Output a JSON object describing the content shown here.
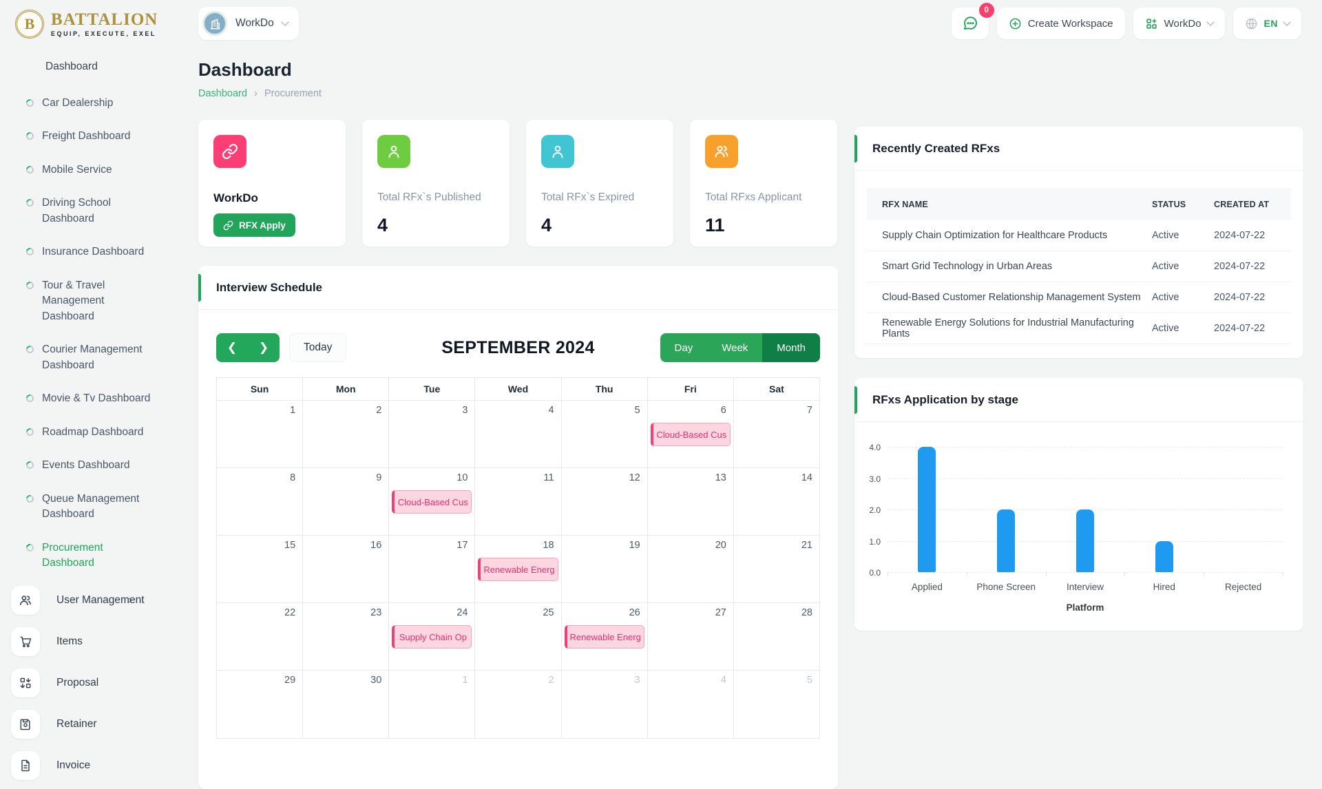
{
  "brand": {
    "name": "BATTALION",
    "tagline": "EQUIP, EXECUTE, EXEL",
    "monogram": "B"
  },
  "topbar": {
    "workspace_switcher_label": "WorkDo",
    "chat_badge_count": "0",
    "create_workspace_label": "Create Workspace",
    "workspace_menu_label": "WorkDo",
    "language_label": "EN"
  },
  "sidebar": {
    "group_label": "Dashboard",
    "dashboard_items": [
      {
        "label": "Car Dealership"
      },
      {
        "label": "Freight Dashboard"
      },
      {
        "label": "Mobile Service"
      },
      {
        "label": "Driving School Dashboard"
      },
      {
        "label": "Insurance Dashboard"
      },
      {
        "label": "Tour & Travel Management Dashboard"
      },
      {
        "label": "Courier Management Dashboard"
      },
      {
        "label": "Movie & Tv Dashboard"
      },
      {
        "label": "Roadmap Dashboard"
      },
      {
        "label": "Events Dashboard"
      },
      {
        "label": "Queue Management Dashboard"
      },
      {
        "label": "Procurement Dashboard",
        "active": true
      }
    ],
    "module_items": [
      {
        "label": "User Management",
        "icon": "users",
        "has_submenu": true
      },
      {
        "label": "Items",
        "icon": "cart"
      },
      {
        "label": "Proposal",
        "icon": "proposal"
      },
      {
        "label": "Retainer",
        "icon": "retainer"
      },
      {
        "label": "Invoice",
        "icon": "invoice"
      }
    ]
  },
  "page": {
    "title": "Dashboard",
    "breadcrumb_root": "Dashboard",
    "breadcrumb_separator": "›",
    "breadcrumb_current": "Procurement"
  },
  "stats": [
    {
      "icon": "link",
      "icon_bg": "#FB3E74",
      "title": "WorkDo",
      "title_style": "dark",
      "button_label": "RFX Apply"
    },
    {
      "icon": "user",
      "icon_bg": "#6DCC3F",
      "title": "Total RFx`s Published",
      "value": "4"
    },
    {
      "icon": "user",
      "icon_bg": "#40C5D3",
      "title": "Total RFx`s Expired",
      "value": "4"
    },
    {
      "icon": "users",
      "icon_bg": "#F7A12C",
      "title": "Total RFxs Applicant",
      "value": "11"
    }
  ],
  "calendar": {
    "card_title": "Interview Schedule",
    "today_label": "Today",
    "month_title": "SEPTEMBER 2024",
    "views": [
      "Day",
      "Week",
      "Month"
    ],
    "active_view": "Month",
    "day_headers": [
      "Sun",
      "Mon",
      "Tue",
      "Wed",
      "Thu",
      "Fri",
      "Sat"
    ],
    "weeks": [
      [
        {
          "d": "1"
        },
        {
          "d": "2"
        },
        {
          "d": "3"
        },
        {
          "d": "4"
        },
        {
          "d": "5"
        },
        {
          "d": "6",
          "event": "Cloud-Based Cus"
        },
        {
          "d": "7"
        }
      ],
      [
        {
          "d": "8"
        },
        {
          "d": "9"
        },
        {
          "d": "10",
          "event": "Cloud-Based Cus"
        },
        {
          "d": "11"
        },
        {
          "d": "12"
        },
        {
          "d": "13"
        },
        {
          "d": "14"
        }
      ],
      [
        {
          "d": "15"
        },
        {
          "d": "16"
        },
        {
          "d": "17"
        },
        {
          "d": "18",
          "event": "Renewable Energ"
        },
        {
          "d": "19"
        },
        {
          "d": "20"
        },
        {
          "d": "21"
        }
      ],
      [
        {
          "d": "22"
        },
        {
          "d": "23"
        },
        {
          "d": "24",
          "event": "Supply Chain Op"
        },
        {
          "d": "25"
        },
        {
          "d": "26",
          "event": "Renewable Energ"
        },
        {
          "d": "27"
        },
        {
          "d": "28"
        }
      ],
      [
        {
          "d": "29"
        },
        {
          "d": "30"
        },
        {
          "d": "1",
          "muted": true
        },
        {
          "d": "2",
          "muted": true
        },
        {
          "d": "3",
          "muted": true
        },
        {
          "d": "4",
          "muted": true
        },
        {
          "d": "5",
          "muted": true
        }
      ]
    ]
  },
  "rfx_table": {
    "card_title": "Recently Created RFxs",
    "columns": [
      "RFX NAME",
      "STATUS",
      "CREATED AT"
    ],
    "rows": [
      [
        "Supply Chain Optimization for Healthcare Products",
        "Active",
        "2024-07-22"
      ],
      [
        "Smart Grid Technology in Urban Areas",
        "Active",
        "2024-07-22"
      ],
      [
        "Cloud-Based Customer Relationship Management System",
        "Active",
        "2024-07-22"
      ],
      [
        "Renewable Energy Solutions for Industrial Manufacturing Plants",
        "Active",
        "2024-07-22"
      ]
    ]
  },
  "chart_data": {
    "type": "bar",
    "title": "RFxs Application by stage",
    "categories": [
      "Applied",
      "Phone Screen",
      "Interview",
      "Hired",
      "Rejected"
    ],
    "values": [
      4,
      2,
      2,
      1,
      0
    ],
    "xlabel": "Platform",
    "ylabel": "",
    "ylim": [
      0,
      4
    ],
    "yticks": [
      "4.0",
      "3.0",
      "2.0",
      "1.0",
      "0.0"
    ],
    "bar_color": "#1E9BF0",
    "grid": "dashed-horizontal",
    "legend": "none"
  },
  "colors": {
    "accent_green": "#21A35D",
    "dark_green": "#0F7F46",
    "event_pink": "#F43F74",
    "bar_blue": "#1E9BF0",
    "logo_gold": "#AE9140"
  }
}
